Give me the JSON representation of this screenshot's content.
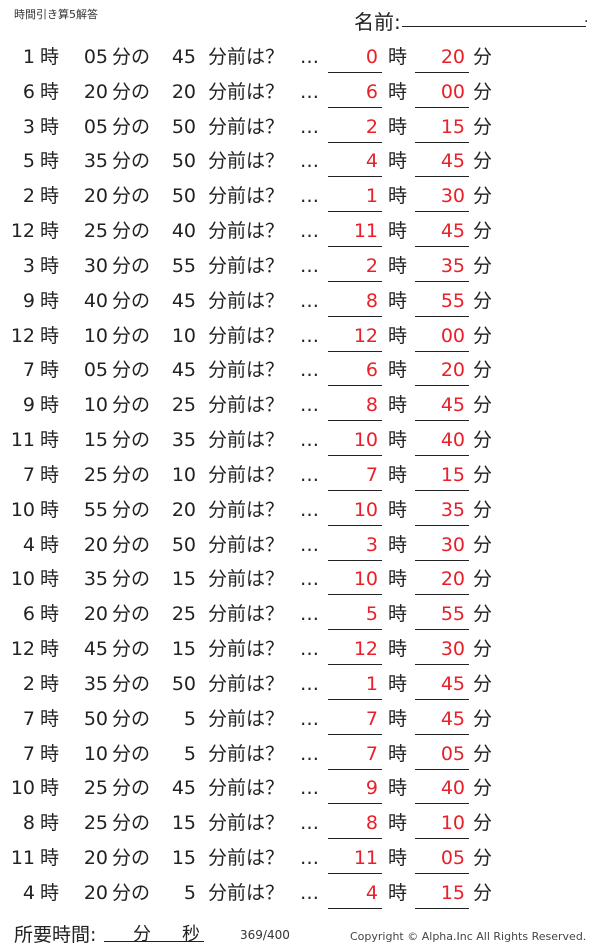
{
  "header": {
    "title": "時間引き算5解答",
    "name_label": "名前:",
    "name_end": "."
  },
  "labels": {
    "hour": "時",
    "min_no": "分の",
    "min_before": "分前は？",
    "ellipsis": "…",
    "min": "分"
  },
  "colors": {
    "answer": "#e8202a"
  },
  "problems": [
    {
      "h": "1",
      "m": "05",
      "b": "45",
      "ah": "0",
      "am": "20"
    },
    {
      "h": "6",
      "m": "20",
      "b": "20",
      "ah": "6",
      "am": "00"
    },
    {
      "h": "3",
      "m": "05",
      "b": "50",
      "ah": "2",
      "am": "15"
    },
    {
      "h": "5",
      "m": "35",
      "b": "50",
      "ah": "4",
      "am": "45"
    },
    {
      "h": "2",
      "m": "20",
      "b": "50",
      "ah": "1",
      "am": "30"
    },
    {
      "h": "12",
      "m": "25",
      "b": "40",
      "ah": "11",
      "am": "45"
    },
    {
      "h": "3",
      "m": "30",
      "b": "55",
      "ah": "2",
      "am": "35"
    },
    {
      "h": "9",
      "m": "40",
      "b": "45",
      "ah": "8",
      "am": "55"
    },
    {
      "h": "12",
      "m": "10",
      "b": "10",
      "ah": "12",
      "am": "00"
    },
    {
      "h": "7",
      "m": "05",
      "b": "45",
      "ah": "6",
      "am": "20"
    },
    {
      "h": "9",
      "m": "10",
      "b": "25",
      "ah": "8",
      "am": "45"
    },
    {
      "h": "11",
      "m": "15",
      "b": "35",
      "ah": "10",
      "am": "40"
    },
    {
      "h": "7",
      "m": "25",
      "b": "10",
      "ah": "7",
      "am": "15"
    },
    {
      "h": "10",
      "m": "55",
      "b": "20",
      "ah": "10",
      "am": "35"
    },
    {
      "h": "4",
      "m": "20",
      "b": "50",
      "ah": "3",
      "am": "30"
    },
    {
      "h": "10",
      "m": "35",
      "b": "15",
      "ah": "10",
      "am": "20"
    },
    {
      "h": "6",
      "m": "20",
      "b": "25",
      "ah": "5",
      "am": "55"
    },
    {
      "h": "12",
      "m": "45",
      "b": "15",
      "ah": "12",
      "am": "30"
    },
    {
      "h": "2",
      "m": "35",
      "b": "50",
      "ah": "1",
      "am": "45"
    },
    {
      "h": "7",
      "m": "50",
      "b": "5",
      "ah": "7",
      "am": "45"
    },
    {
      "h": "7",
      "m": "10",
      "b": "5",
      "ah": "7",
      "am": "05"
    },
    {
      "h": "10",
      "m": "25",
      "b": "45",
      "ah": "9",
      "am": "40"
    },
    {
      "h": "8",
      "m": "25",
      "b": "15",
      "ah": "8",
      "am": "10"
    },
    {
      "h": "11",
      "m": "20",
      "b": "15",
      "ah": "11",
      "am": "05"
    },
    {
      "h": "4",
      "m": "20",
      "b": "5",
      "ah": "4",
      "am": "15"
    }
  ],
  "footer": {
    "time_label": "所要時間:",
    "min": "分",
    "sec": "秒",
    "page": "369/400",
    "copyright": "Copyright ©  Alpha.Inc All Rights Reserved."
  }
}
